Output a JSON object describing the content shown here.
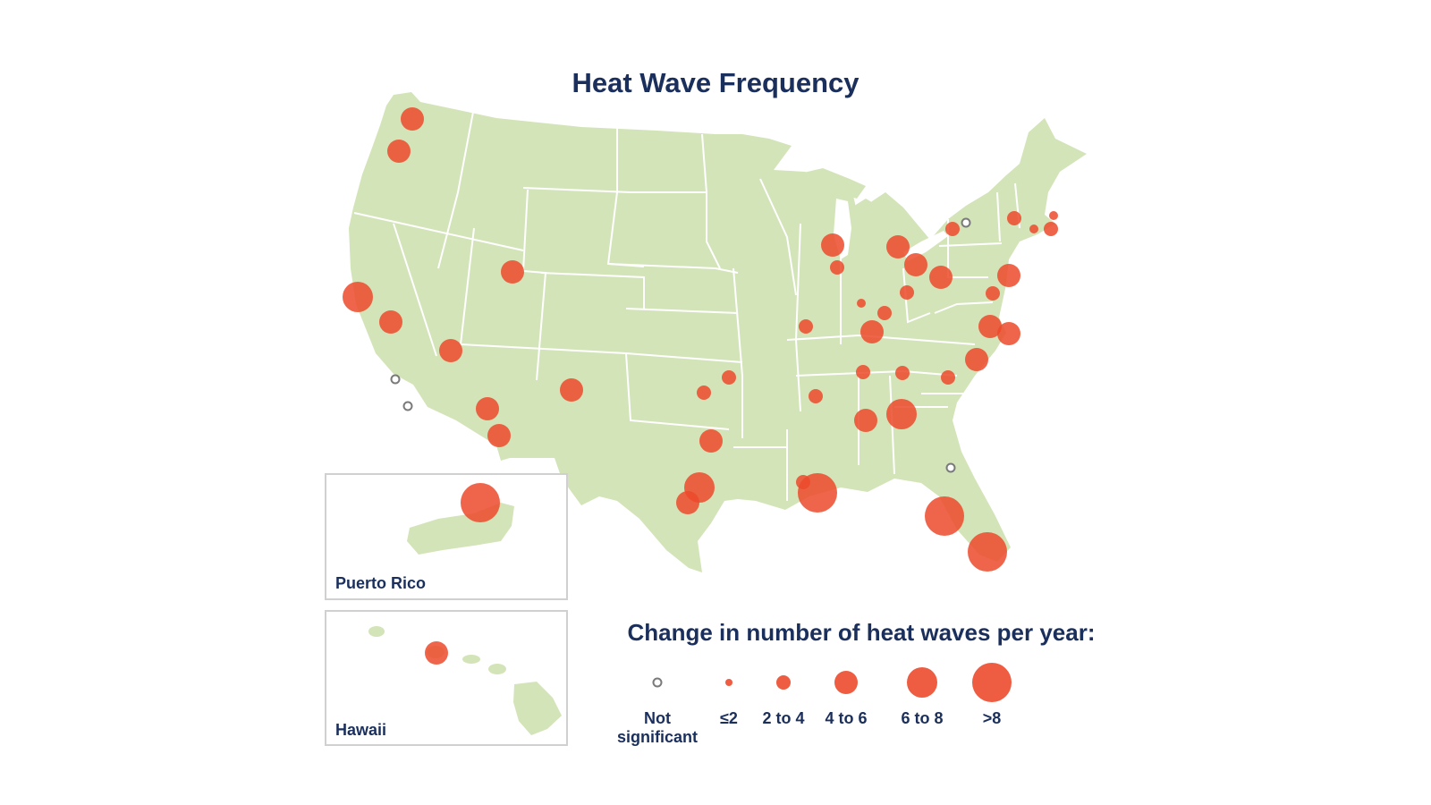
{
  "map": {
    "title": "Heat Wave Frequency",
    "land_color": "#d3e4b9",
    "border_color": "#ffffff",
    "marker_color": "#ec4a2c",
    "ns_color": "#8a8a8a",
    "insets": {
      "puerto_rico": "Puerto Rico",
      "hawaii": "Hawaii"
    }
  },
  "legend": {
    "title": "Change in number of heat waves per year:",
    "items": [
      {
        "key": "ns",
        "line1": "Not",
        "line2": "significant"
      },
      {
        "key": "le2",
        "line1": "≤2"
      },
      {
        "key": "2to4",
        "line1": "2 to 4"
      },
      {
        "key": "4to6",
        "line1": "4 to 6"
      },
      {
        "key": "6to8",
        "line1": "6 to 8"
      },
      {
        "key": "gt8",
        "line1": ">8"
      }
    ]
  }
}
